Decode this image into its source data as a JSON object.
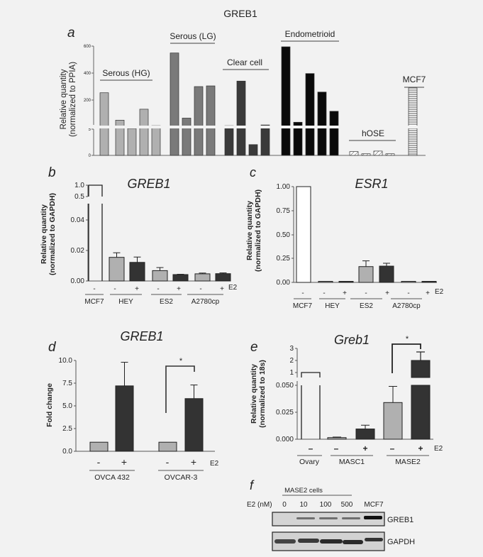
{
  "figure_title": "GREB1",
  "chart_data": [
    {
      "panel": "a",
      "type": "bar",
      "title": "GREB1",
      "ylabel": "Relative quantity\n(normalized to PPIA)",
      "yticks": [
        "0",
        "5",
        "200",
        "400",
        "600"
      ],
      "axis_break": true,
      "lower_range": [
        0,
        5
      ],
      "upper_range": [
        5,
        600
      ],
      "groups": [
        {
          "label": "Serous (HG)",
          "color": "#b0b0b0",
          "values": [
            260,
            60,
            5,
            140,
            20
          ]
        },
        {
          "label": "Serous (LG)",
          "color": "#7a7a7a",
          "values": [
            550,
            75,
            305,
            310
          ]
        },
        {
          "label": "Clear cell",
          "color": "#3a3a3a",
          "values": [
            20,
            345,
            2,
            25
          ]
        },
        {
          "label": "Endometrioid",
          "color": "#0a0a0a",
          "values": [
            595,
            45,
            400,
            265,
            125
          ]
        },
        {
          "label": "hOSE",
          "color": "#ffffff",
          "pattern": "diagonal-hatch",
          "values": [
            0.7,
            0.3,
            0.8,
            0.3
          ]
        },
        {
          "label": "MCF7",
          "color": "#ffffff",
          "pattern": "horizontal-lines",
          "values": [
            300
          ]
        }
      ]
    },
    {
      "panel": "b",
      "type": "bar",
      "title": "GREB1",
      "ylabel": "Relative quantity\n(normalized to GAPDH)",
      "yticks": [
        "0.00",
        "0.02",
        "0.04",
        "0.5",
        "1.0"
      ],
      "axis_break": true,
      "categories": [
        "MCF7 -",
        "HEY -",
        "HEY +",
        "ES2 -",
        "ES2 +",
        "A2780cp -",
        "A2780cp +"
      ],
      "values": [
        1.0,
        0.0155,
        0.0122,
        0.0068,
        0.0042,
        0.0047,
        0.0048
      ],
      "errors": [
        0,
        0.003,
        0.0035,
        0.002,
        0.0002,
        0.0005,
        0.0005
      ],
      "colors": [
        "#ffffff",
        "#b0b0b0",
        "#333333",
        "#b0b0b0",
        "#333333",
        "#b0b0b0",
        "#333333"
      ],
      "cell_lines": [
        "MCF7",
        "HEY",
        "ES2",
        "A2780cp"
      ],
      "treatment_label": "E2"
    },
    {
      "panel": "c",
      "type": "bar",
      "title": "ESR1",
      "ylabel": "Relative quantity\n(normalized to GAPDH)",
      "yticks": [
        "0.00",
        "0.25",
        "0.50",
        "0.75",
        "1.00"
      ],
      "ylim": [
        0,
        1.0
      ],
      "categories": [
        "MCF7 -",
        "HEY -",
        "HEY +",
        "ES2 -",
        "ES2 +",
        "A2780cp -",
        "A2780cp +"
      ],
      "values": [
        1.0,
        0.002,
        0.002,
        0.165,
        0.17,
        0.003,
        0.003
      ],
      "errors": [
        0,
        0,
        0,
        0.06,
        0.03,
        0,
        0
      ],
      "colors": [
        "#ffffff",
        "#b0b0b0",
        "#333333",
        "#b0b0b0",
        "#333333",
        "#b0b0b0",
        "#333333"
      ],
      "cell_lines": [
        "MCF7",
        "HEY",
        "ES2",
        "A2780cp"
      ],
      "treatment_label": "E2"
    },
    {
      "panel": "d",
      "type": "bar",
      "title": "GREB1",
      "ylabel": "Fold change",
      "yticks": [
        "0.0",
        "2.5",
        "5.0",
        "7.5",
        "10.0"
      ],
      "ylim": [
        0,
        10
      ],
      "categories": [
        "OVCA 432 -",
        "OVCA 432 +",
        "OVCAR-3 -",
        "OVCAR-3 +"
      ],
      "values": [
        1.0,
        7.2,
        1.0,
        5.8
      ],
      "errors": [
        0,
        2.6,
        0,
        1.5
      ],
      "colors": [
        "#b0b0b0",
        "#333333",
        "#b0b0b0",
        "#333333"
      ],
      "cell_lines": [
        "OVCA 432",
        "OVCAR-3"
      ],
      "treatment_label": "E2",
      "significance": {
        "between": [
          "OVCAR-3 -",
          "OVCAR-3 +"
        ],
        "mark": "*"
      }
    },
    {
      "panel": "e",
      "type": "bar",
      "title": "Greb1",
      "ylabel": "Relative quantity\n(normalized to 18s)",
      "yticks": [
        "0.000",
        "0.025",
        "0.050",
        "1",
        "2",
        "3"
      ],
      "axis_break": true,
      "categories": [
        "Ovary -",
        "MASC1 -",
        "MASC1 +",
        "MASE2 -",
        "MASE2 +"
      ],
      "values": [
        1.0,
        0.0015,
        0.0095,
        0.034,
        2.0
      ],
      "errors": [
        0,
        0.0005,
        0.0035,
        0.015,
        0.7
      ],
      "colors": [
        "#ffffff",
        "#b0b0b0",
        "#333333",
        "#b0b0b0",
        "#333333"
      ],
      "cell_lines": [
        "Ovary",
        "MASC1",
        "MASE2"
      ],
      "treatment_label": "E2",
      "significance": {
        "between": [
          "MASE2 -",
          "MASE2 +"
        ],
        "mark": "*"
      }
    }
  ],
  "panel_labels": {
    "a": "a",
    "b": "b",
    "c": "c",
    "d": "d",
    "e": "e",
    "f": "f"
  },
  "panel_a": {
    "groups": [
      "Serous (HG)",
      "Serous (LG)",
      "Clear cell",
      "Endometrioid",
      "hOSE",
      "MCF7"
    ],
    "ylabel1": "Relative quantity",
    "ylabel2": "(normalized to PPIA)",
    "yticks": [
      "0",
      "5",
      "200",
      "400",
      "600"
    ]
  },
  "panel_b": {
    "title": "GREB1",
    "ylabel1": "Relative quantity",
    "ylabel2": "(normalized to GAPDH)",
    "yticks": [
      "0.00",
      "0.02",
      "0.04",
      "0.5",
      "1.0"
    ],
    "signs": [
      "-",
      "-",
      "+",
      "-",
      "+",
      "-",
      "+"
    ],
    "lines": [
      "MCF7",
      "HEY",
      "ES2",
      "A2780cp"
    ],
    "treatment": "E2"
  },
  "panel_c": {
    "title": "ESR1",
    "ylabel1": "Relative quantity",
    "ylabel2": "(normalized to GAPDH)",
    "yticks": [
      "0.00",
      "0.25",
      "0.50",
      "0.75",
      "1.00"
    ],
    "signs": [
      "-",
      "-",
      "+",
      "-",
      "+",
      "-",
      "+"
    ],
    "lines": [
      "MCF7",
      "HEY",
      "ES2",
      "A2780cp"
    ],
    "treatment": "E2"
  },
  "panel_d": {
    "title": "GREB1",
    "ylabel": "Fold change",
    "yticks": [
      "0.0",
      "2.5",
      "5.0",
      "7.5",
      "10.0"
    ],
    "signs": [
      "-",
      "+",
      "-",
      "+"
    ],
    "lines": [
      "OVCA 432",
      "OVCAR-3"
    ],
    "treatment": "E2",
    "sig": "*"
  },
  "panel_e": {
    "title": "Greb1",
    "ylabel1": "Relative quantity",
    "ylabel2": "(normalized to 18s)",
    "yticks": [
      "0.000",
      "0.025",
      "0.050",
      "1",
      "2",
      "3"
    ],
    "signs": [
      "–",
      "–",
      "+",
      "–",
      "+"
    ],
    "lines": [
      "Ovary",
      "MASC1",
      "MASE2"
    ],
    "treatment": "E2",
    "sig": "*"
  },
  "panel_f": {
    "group_label": "MASE2 cells",
    "dose_label": "E2 (nM)",
    "lanes": [
      "0",
      "10",
      "100",
      "500",
      "MCF7"
    ],
    "blots": [
      "GREB1",
      "GAPDH"
    ]
  }
}
